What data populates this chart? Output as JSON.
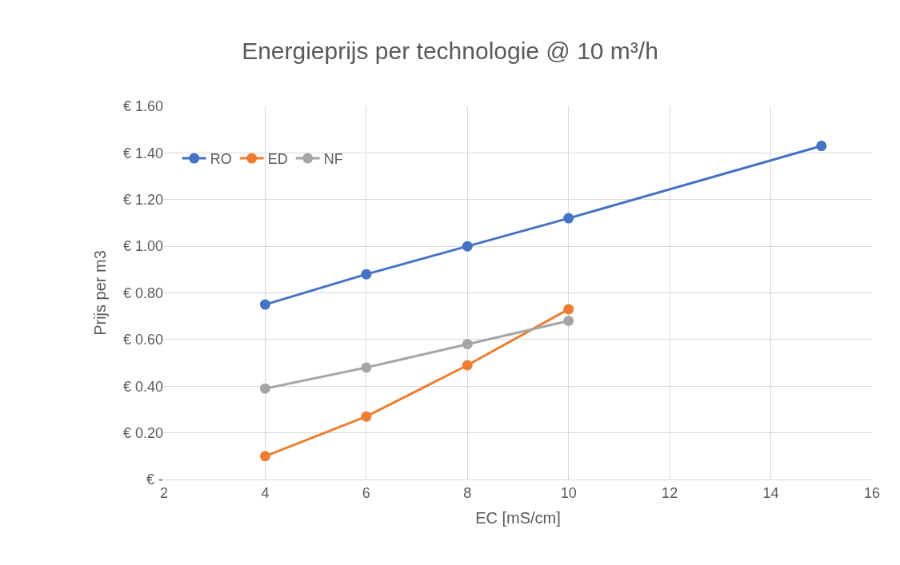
{
  "chart_data": {
    "type": "line",
    "title": "Energieprijs per technologie @ 10 m³/h",
    "xlabel": "EC [mS/cm]",
    "ylabel": "Prijs per m3",
    "series": [
      {
        "name": "RO",
        "color": "#4472c4",
        "x": [
          4,
          6,
          8,
          10,
          15
        ],
        "values": [
          0.75,
          0.88,
          1.0,
          1.12,
          1.43
        ]
      },
      {
        "name": "ED",
        "color": "#ed7d31",
        "x": [
          4,
          6,
          8,
          10
        ],
        "values": [
          0.1,
          0.27,
          0.49,
          0.73
        ]
      },
      {
        "name": "NF",
        "color": "#a5a5a5",
        "x": [
          4,
          6,
          8,
          10
        ],
        "values": [
          0.39,
          0.48,
          0.58,
          0.68
        ]
      }
    ],
    "xlim": [
      2,
      16
    ],
    "xticks": [
      2,
      4,
      6,
      8,
      10,
      12,
      14,
      16
    ],
    "ylim": [
      0,
      1.6
    ],
    "yticks": [
      {
        "value": 0,
        "label": "€ -"
      },
      {
        "value": 0.2,
        "label": "€ 0.20"
      },
      {
        "value": 0.4,
        "label": "€ 0.40"
      },
      {
        "value": 0.6,
        "label": "€ 0.60"
      },
      {
        "value": 0.8,
        "label": "€ 0.80"
      },
      {
        "value": 1.0,
        "label": "€ 1.00"
      },
      {
        "value": 1.2,
        "label": "€ 1.20"
      },
      {
        "value": 1.4,
        "label": "€ 1.40"
      },
      {
        "value": 1.6,
        "label": "€ 1.60"
      }
    ],
    "grid": true,
    "legend": "top left",
    "marker": "circle",
    "line_style": "solid"
  }
}
